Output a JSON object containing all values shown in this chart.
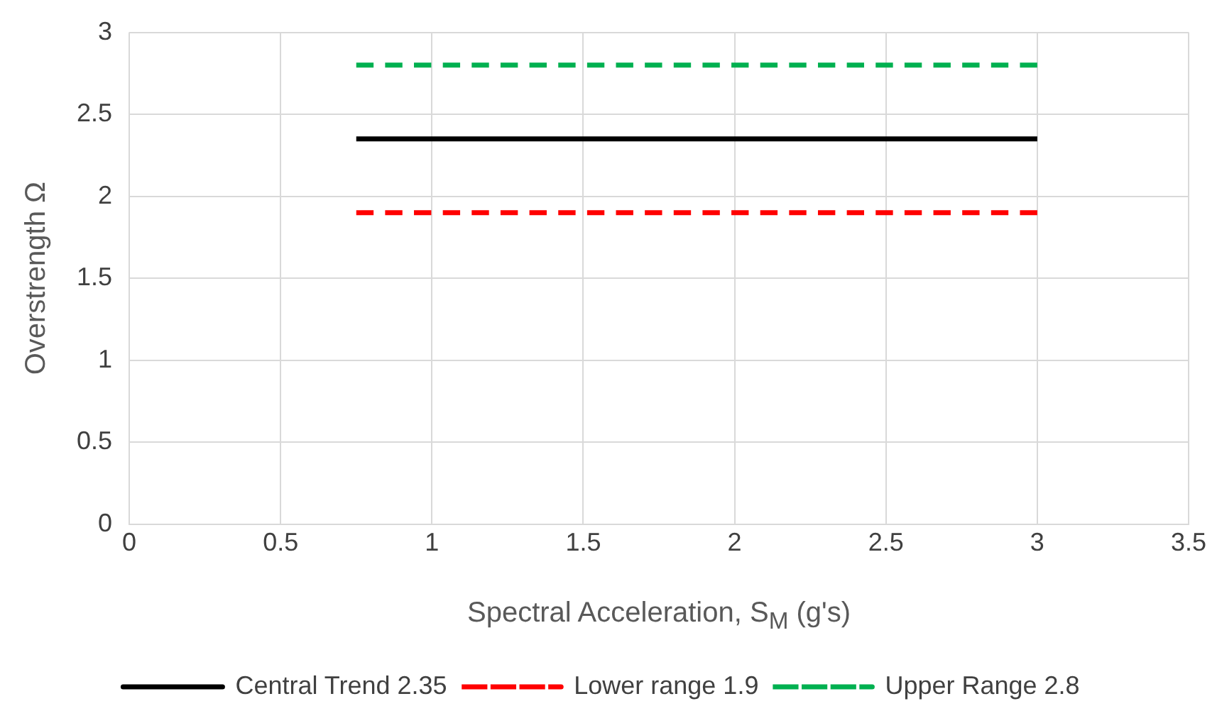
{
  "chart_data": {
    "type": "line",
    "xlabel": "Spectral Acceleration, S$_{M}$ (g's)",
    "ylabel": "Overstrength Ω",
    "x": [
      0.75,
      3
    ],
    "series": [
      {
        "name": "Central Trend 2.35",
        "color": "#000000",
        "values": [
          2.35,
          2.35
        ],
        "line_style": "solid"
      },
      {
        "name": "Lower range 1.9",
        "color": "#ff0000",
        "values": [
          1.9,
          1.9
        ],
        "line_style": "dashed"
      },
      {
        "name": "Upper Range 2.8",
        "color": "#00b050",
        "values": [
          2.8,
          2.8
        ],
        "line_style": "dashed"
      }
    ],
    "xlim": [
      0,
      3.5
    ],
    "xticks": [
      0,
      0.5,
      1,
      1.5,
      2,
      2.5,
      3,
      3.5
    ],
    "ylim": [
      0,
      3
    ],
    "yticks": [
      0,
      0.5,
      1,
      1.5,
      2,
      2.5,
      3
    ],
    "grid": true,
    "legend": "bottom",
    "marker": "none"
  }
}
